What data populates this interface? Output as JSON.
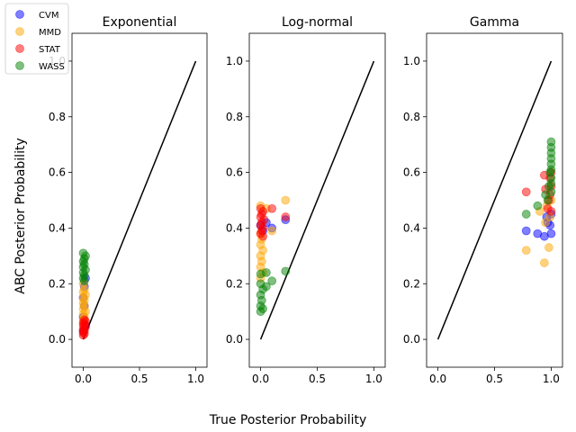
{
  "figure": {
    "xlabel": "True Posterior Probability",
    "ylabel": "ABC Posterior Probability"
  },
  "legend": {
    "entries": [
      {
        "name": "CVM",
        "color": "#0000ff"
      },
      {
        "name": "MMD",
        "color": "#ffa500"
      },
      {
        "name": "STAT",
        "color": "#ff0000"
      },
      {
        "name": "WASS",
        "color": "#008000"
      }
    ],
    "placement": "upper-left"
  },
  "chart_data": [
    {
      "type": "scatter",
      "title": "Exponential",
      "xlim": [
        -0.1,
        1.1
      ],
      "ylim": [
        -0.1,
        1.1
      ],
      "xticks": [
        "0.0",
        "0.5",
        "1.0"
      ],
      "yticks": [
        "0.0",
        "0.2",
        "0.4",
        "0.6",
        "0.8",
        "1.0"
      ],
      "reference_line": {
        "x": [
          0,
          1
        ],
        "y": [
          0,
          1
        ],
        "color": "#000000"
      },
      "series": [
        {
          "name": "CVM",
          "color": "#0000ff",
          "points": [
            [
              0.02,
              0.22
            ],
            [
              0.01,
              0.19
            ],
            [
              0.0,
              0.15
            ],
            [
              0.01,
              0.12
            ],
            [
              0.0,
              0.08
            ],
            [
              0.02,
              0.05
            ],
            [
              0.0,
              0.03
            ]
          ]
        },
        {
          "name": "MMD",
          "color": "#ffa500",
          "points": [
            [
              0.0,
              0.2
            ],
            [
              0.01,
              0.18
            ],
            [
              0.0,
              0.17
            ],
            [
              0.02,
              0.16
            ],
            [
              0.0,
              0.15
            ],
            [
              0.01,
              0.14
            ],
            [
              0.0,
              0.13
            ],
            [
              0.01,
              0.12
            ],
            [
              0.0,
              0.11
            ],
            [
              0.02,
              0.1
            ],
            [
              0.0,
              0.09
            ],
            [
              0.01,
              0.08
            ],
            [
              0.0,
              0.07
            ],
            [
              0.01,
              0.06
            ]
          ]
        },
        {
          "name": "STAT",
          "color": "#ff0000",
          "points": [
            [
              0.01,
              0.07
            ],
            [
              0.02,
              0.065
            ],
            [
              0.0,
              0.06
            ],
            [
              0.01,
              0.055
            ],
            [
              0.0,
              0.05
            ],
            [
              0.02,
              0.045
            ],
            [
              0.01,
              0.04
            ],
            [
              0.0,
              0.035
            ],
            [
              0.01,
              0.03
            ],
            [
              0.0,
              0.025
            ],
            [
              0.01,
              0.02
            ],
            [
              0.0,
              0.015
            ]
          ]
        },
        {
          "name": "WASS",
          "color": "#008000",
          "points": [
            [
              0.0,
              0.31
            ],
            [
              0.02,
              0.3
            ],
            [
              0.01,
              0.29
            ],
            [
              0.0,
              0.28
            ],
            [
              0.01,
              0.27
            ],
            [
              0.0,
              0.26
            ],
            [
              0.02,
              0.25
            ],
            [
              0.0,
              0.24
            ],
            [
              0.01,
              0.23
            ],
            [
              0.0,
              0.22
            ],
            [
              0.01,
              0.21
            ]
          ]
        }
      ]
    },
    {
      "type": "scatter",
      "title": "Log-normal",
      "xlim": [
        -0.1,
        1.1
      ],
      "ylim": [
        -0.1,
        1.1
      ],
      "xticks": [
        "0.0",
        "0.5",
        "1.0"
      ],
      "yticks": [
        "0.0",
        "0.2",
        "0.4",
        "0.6",
        "0.8",
        "1.0"
      ],
      "reference_line": {
        "x": [
          0,
          1
        ],
        "y": [
          0,
          1
        ],
        "color": "#000000"
      },
      "series": [
        {
          "name": "CVM",
          "color": "#0000ff",
          "points": [
            [
              0.22,
              0.43
            ],
            [
              0.1,
              0.4
            ],
            [
              0.05,
              0.42
            ],
            [
              0.0,
              0.41
            ],
            [
              0.02,
              0.39
            ]
          ]
        },
        {
          "name": "MMD",
          "color": "#ffa500",
          "points": [
            [
              0.22,
              0.5
            ],
            [
              0.0,
              0.48
            ],
            [
              0.05,
              0.47
            ],
            [
              0.1,
              0.39
            ],
            [
              0.0,
              0.38
            ],
            [
              0.01,
              0.36
            ],
            [
              0.0,
              0.34
            ],
            [
              0.02,
              0.32
            ],
            [
              0.0,
              0.3
            ],
            [
              0.01,
              0.28
            ],
            [
              0.0,
              0.26
            ],
            [
              0.02,
              0.24
            ],
            [
              0.0,
              0.22
            ]
          ]
        },
        {
          "name": "STAT",
          "color": "#ff0000",
          "points": [
            [
              0.0,
              0.47
            ],
            [
              0.02,
              0.46
            ],
            [
              0.01,
              0.45
            ],
            [
              0.0,
              0.44
            ],
            [
              0.03,
              0.43
            ],
            [
              0.01,
              0.42
            ],
            [
              0.0,
              0.41
            ],
            [
              0.02,
              0.4
            ],
            [
              0.01,
              0.39
            ],
            [
              0.0,
              0.38
            ],
            [
              0.02,
              0.37
            ],
            [
              0.22,
              0.44
            ],
            [
              0.1,
              0.47
            ]
          ]
        },
        {
          "name": "WASS",
          "color": "#008000",
          "points": [
            [
              0.22,
              0.245
            ],
            [
              0.05,
              0.24
            ],
            [
              0.0,
              0.235
            ],
            [
              0.1,
              0.21
            ],
            [
              0.05,
              0.19
            ],
            [
              0.0,
              0.2
            ],
            [
              0.02,
              0.18
            ],
            [
              0.0,
              0.16
            ],
            [
              0.01,
              0.14
            ],
            [
              0.0,
              0.12
            ],
            [
              0.02,
              0.11
            ],
            [
              0.0,
              0.1
            ]
          ]
        }
      ]
    },
    {
      "type": "scatter",
      "title": "Gamma",
      "xlim": [
        -0.1,
        1.1
      ],
      "ylim": [
        -0.1,
        1.1
      ],
      "xticks": [
        "0.0",
        "0.5",
        "1.0"
      ],
      "yticks": [
        "0.0",
        "0.2",
        "0.4",
        "0.6",
        "0.8",
        "1.0"
      ],
      "reference_line": {
        "x": [
          0,
          1
        ],
        "y": [
          0,
          1
        ],
        "color": "#000000"
      },
      "series": [
        {
          "name": "CVM",
          "color": "#0000ff",
          "points": [
            [
              0.78,
              0.39
            ],
            [
              0.88,
              0.38
            ],
            [
              0.94,
              0.37
            ],
            [
              0.97,
              0.42
            ],
            [
              1.0,
              0.38
            ],
            [
              0.99,
              0.41
            ],
            [
              0.96,
              0.44
            ],
            [
              1.0,
              0.45
            ]
          ]
        },
        {
          "name": "MMD",
          "color": "#ffa500",
          "points": [
            [
              0.78,
              0.32
            ],
            [
              0.94,
              0.275
            ],
            [
              0.98,
              0.33
            ],
            [
              0.9,
              0.46
            ],
            [
              0.96,
              0.48
            ],
            [
              0.99,
              0.44
            ],
            [
              1.0,
              0.5
            ],
            [
              0.95,
              0.42
            ]
          ]
        },
        {
          "name": "STAT",
          "color": "#ff0000",
          "points": [
            [
              0.78,
              0.53
            ],
            [
              0.94,
              0.59
            ],
            [
              0.95,
              0.54
            ],
            [
              0.98,
              0.5
            ],
            [
              1.0,
              0.55
            ],
            [
              0.99,
              0.58
            ],
            [
              1.0,
              0.6
            ],
            [
              0.97,
              0.47
            ],
            [
              0.99,
              0.52
            ],
            [
              1.0,
              0.46
            ]
          ]
        },
        {
          "name": "WASS",
          "color": "#008000",
          "points": [
            [
              0.78,
              0.45
            ],
            [
              0.88,
              0.48
            ],
            [
              0.95,
              0.52
            ],
            [
              1.0,
              0.71
            ],
            [
              1.0,
              0.69
            ],
            [
              1.0,
              0.67
            ],
            [
              1.0,
              0.65
            ],
            [
              1.0,
              0.63
            ],
            [
              1.0,
              0.61
            ],
            [
              0.99,
              0.6
            ],
            [
              1.0,
              0.58
            ],
            [
              1.0,
              0.56
            ],
            [
              0.98,
              0.55
            ],
            [
              1.0,
              0.53
            ],
            [
              0.97,
              0.5
            ]
          ]
        }
      ]
    }
  ]
}
